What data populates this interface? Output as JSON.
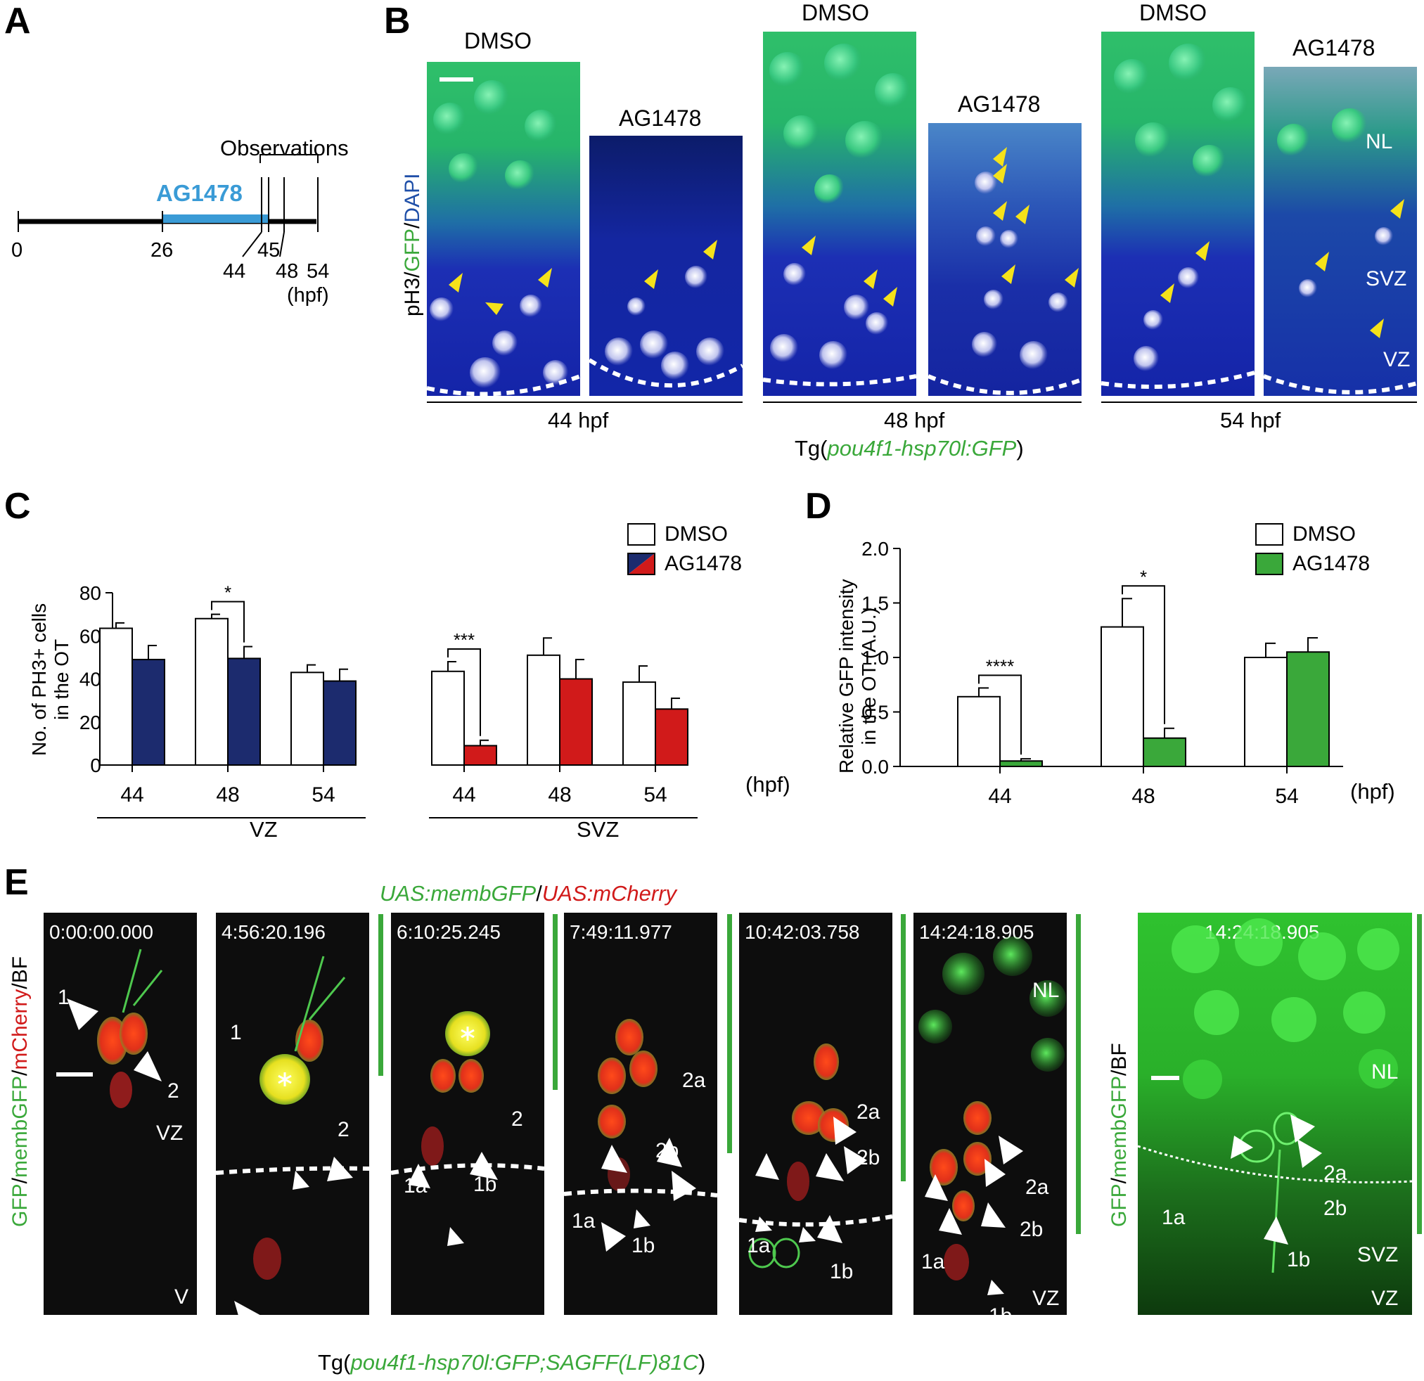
{
  "panels": {
    "A": {
      "label": "A",
      "drug": "AG1478",
      "observations_label": "Observations",
      "ticks": [
        "0",
        "26",
        "44",
        "45",
        "48",
        "54"
      ],
      "unit": "(hpf)",
      "drug_color": "#3a9bd6"
    },
    "B": {
      "label": "B",
      "ylabel_parts": [
        "pH3/",
        "GFP",
        "/",
        "DAPI"
      ],
      "ylabel_colors": [
        "#000000",
        "#3aa83a",
        "#000000",
        "#1f4fa8"
      ],
      "conditions": [
        "DMSO",
        "AG1478",
        "DMSO",
        "AG1478",
        "DMSO",
        "AG1478"
      ],
      "timepoints": [
        "44 hpf",
        "48 hpf",
        "54 hpf"
      ],
      "zone_labels": [
        "NL",
        "SVZ",
        "VZ"
      ],
      "transgene_prefix": "Tg(",
      "transgene_name": "pou4f1-hsp70l:GFP",
      "transgene_suffix": ")"
    },
    "C": {
      "label": "C",
      "ylabel_line1": "No. of PH3+ cells",
      "ylabel_line2": "in the OT",
      "legend": [
        "DMSO",
        "AG1478"
      ],
      "group_labels": [
        "VZ",
        "SVZ"
      ],
      "unit": "(hpf)",
      "sig": [
        "*",
        "***"
      ]
    },
    "D": {
      "label": "D",
      "ylabel_line1": "Relative GFP intensity",
      "ylabel_line2": "in the OT (A.U.)",
      "legend": [
        "DMSO",
        "AG1478"
      ],
      "unit": "(hpf)",
      "sig": [
        "****",
        "*"
      ]
    },
    "E": {
      "label": "E",
      "header_part1": "UAS:membGFP",
      "header_sep": "/",
      "header_part2": "UAS:mCherry",
      "ylabel_parts": [
        "GFP",
        "/",
        "membGFP",
        "/",
        "mCherry",
        "/BF"
      ],
      "ylabel_right_parts": [
        "GFP",
        "/",
        "membGFP",
        "/BF"
      ],
      "timestamps": [
        "0:00:00.000",
        "4:56:20.196",
        "6:10:25.245",
        "7:49:11.977",
        "10:42:03.758",
        "14:24:18.905",
        "14:24:18.905"
      ],
      "cell_labels": [
        "1",
        "2",
        "1a",
        "1b",
        "2a",
        "2b"
      ],
      "zone_labels": [
        "NL",
        "VZ",
        "SVZ",
        "V"
      ],
      "transgene_prefix": "Tg(",
      "transgene_name": "pou4f1-hsp70l:GFP;SAGFF(LF)81C",
      "transgene_suffix": ")"
    }
  },
  "chart_data": [
    {
      "panel": "C",
      "type": "bar",
      "title": "",
      "ylabel": "No. of PH3+ cells in the OT",
      "xlabel": "(hpf)",
      "ylim": [
        0,
        80
      ],
      "yticks": [
        0,
        20,
        40,
        60,
        80
      ],
      "groups": [
        {
          "name": "VZ",
          "categories": [
            "44",
            "48",
            "54"
          ],
          "series": [
            {
              "name": "DMSO",
              "color": "#ffffff",
              "values": [
                63.5,
                68,
                43
              ],
              "errors": [
                2.5,
                2,
                3.5
              ]
            },
            {
              "name": "AG1478",
              "color": "#1c2b6e",
              "values": [
                49,
                49.5,
                39
              ],
              "errors": [
                6.5,
                5.5,
                5.5
              ]
            }
          ]
        },
        {
          "name": "SVZ",
          "categories": [
            "44",
            "48",
            "54"
          ],
          "series": [
            {
              "name": "DMSO",
              "color": "#ffffff",
              "values": [
                43.5,
                51,
                38.5
              ],
              "errors": [
                4.5,
                8,
                7.5
              ]
            },
            {
              "name": "AG1478",
              "color": "#d11a1a",
              "values": [
                9,
                40,
                26
              ],
              "errors": [
                2.5,
                9,
                5
              ]
            }
          ]
        }
      ],
      "significance": [
        {
          "group": "VZ",
          "category": "48",
          "mark": "*"
        },
        {
          "group": "SVZ",
          "category": "44",
          "mark": "***"
        }
      ]
    },
    {
      "panel": "D",
      "type": "bar",
      "title": "",
      "ylabel": "Relative GFP intensity in the OT (A.U.)",
      "xlabel": "(hpf)",
      "ylim": [
        0,
        2.0
      ],
      "yticks": [
        "0.0",
        "0.5",
        "1.0",
        "1.5",
        "2.0"
      ],
      "categories": [
        "44",
        "48",
        "54"
      ],
      "series": [
        {
          "name": "DMSO",
          "color": "#ffffff",
          "values": [
            0.64,
            1.28,
            1.0
          ],
          "errors": [
            0.08,
            0.26,
            0.13
          ]
        },
        {
          "name": "AG1478",
          "color": "#3aa83a",
          "values": [
            0.05,
            0.26,
            1.05
          ],
          "errors": [
            0.02,
            0.09,
            0.13
          ]
        }
      ],
      "significance": [
        {
          "category": "44",
          "mark": "****"
        },
        {
          "category": "48",
          "mark": "*"
        }
      ]
    }
  ]
}
